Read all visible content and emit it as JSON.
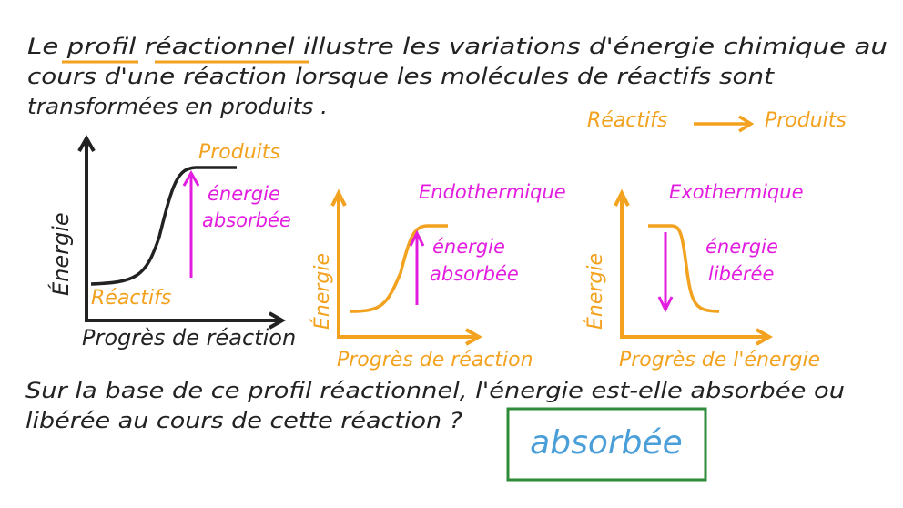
{
  "intro": {
    "lines": [
      "Le profil réactionnel illustre les variations d'énergie chimique au",
      "cours d'une réaction lorsque les molécules de réactifs sont",
      "transformées en produits ."
    ]
  },
  "reaction": {
    "reactants": "Réactifs",
    "products": "Produits"
  },
  "graph_general": {
    "products_label": "Produits",
    "arrow_label": [
      "énergie",
      "absorbée"
    ],
    "y_axis": "Énergie",
    "reactants_label": "Réactifs",
    "x_axis": "Progrès de réaction"
  },
  "graph_endo": {
    "title": "Endothermique",
    "arrow_label": [
      "énergie",
      "absorbée"
    ],
    "y_axis": "Énergie",
    "x_axis": "Progrès de réaction"
  },
  "graph_exo": {
    "title": "Exothermique",
    "arrow_label": [
      "énergie",
      "libérée"
    ],
    "y_axis": "Énergie",
    "x_axis": "Progrès de l'énergie"
  },
  "question": {
    "lines": [
      "Sur la base de ce profil réactionnel, l'énergie est-elle absorbée ou",
      "libérée au cours de cette réaction ?"
    ]
  },
  "answer": "absorbée"
}
